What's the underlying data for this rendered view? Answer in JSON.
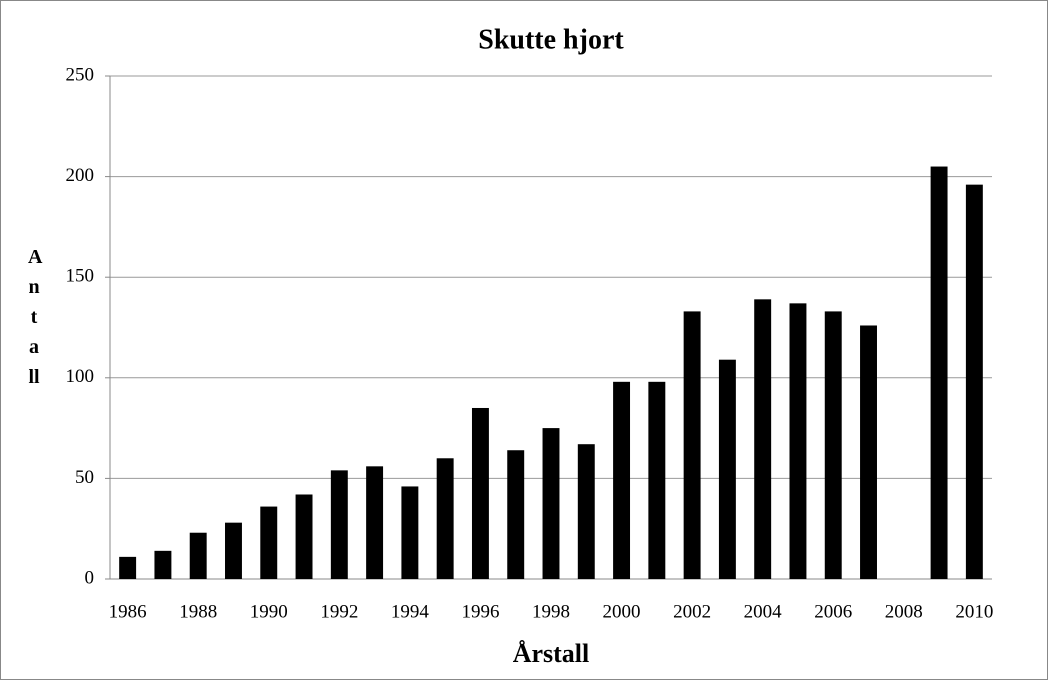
{
  "chart_data": {
    "type": "bar",
    "title": "Skutte hjort",
    "x_label": "Årstall",
    "y_label": "Antall",
    "categories": [
      "1986",
      null,
      "1988",
      null,
      "1990",
      null,
      "1992",
      null,
      "1994",
      null,
      "1996",
      null,
      "1998",
      null,
      "2000",
      null,
      "2002",
      null,
      "2004",
      null,
      "2006",
      null,
      "2008",
      null,
      "2010"
    ],
    "values": [
      11,
      14,
      23,
      28,
      36,
      42,
      54,
      56,
      46,
      60,
      85,
      64,
      75,
      67,
      98,
      98,
      133,
      109,
      139,
      137,
      133,
      126,
      null,
      205,
      196
    ],
    "color": "#000000",
    "ylim": [
      0,
      250
    ],
    "yticks": [
      0,
      50,
      100,
      150,
      200,
      250
    ],
    "grid": true
  }
}
